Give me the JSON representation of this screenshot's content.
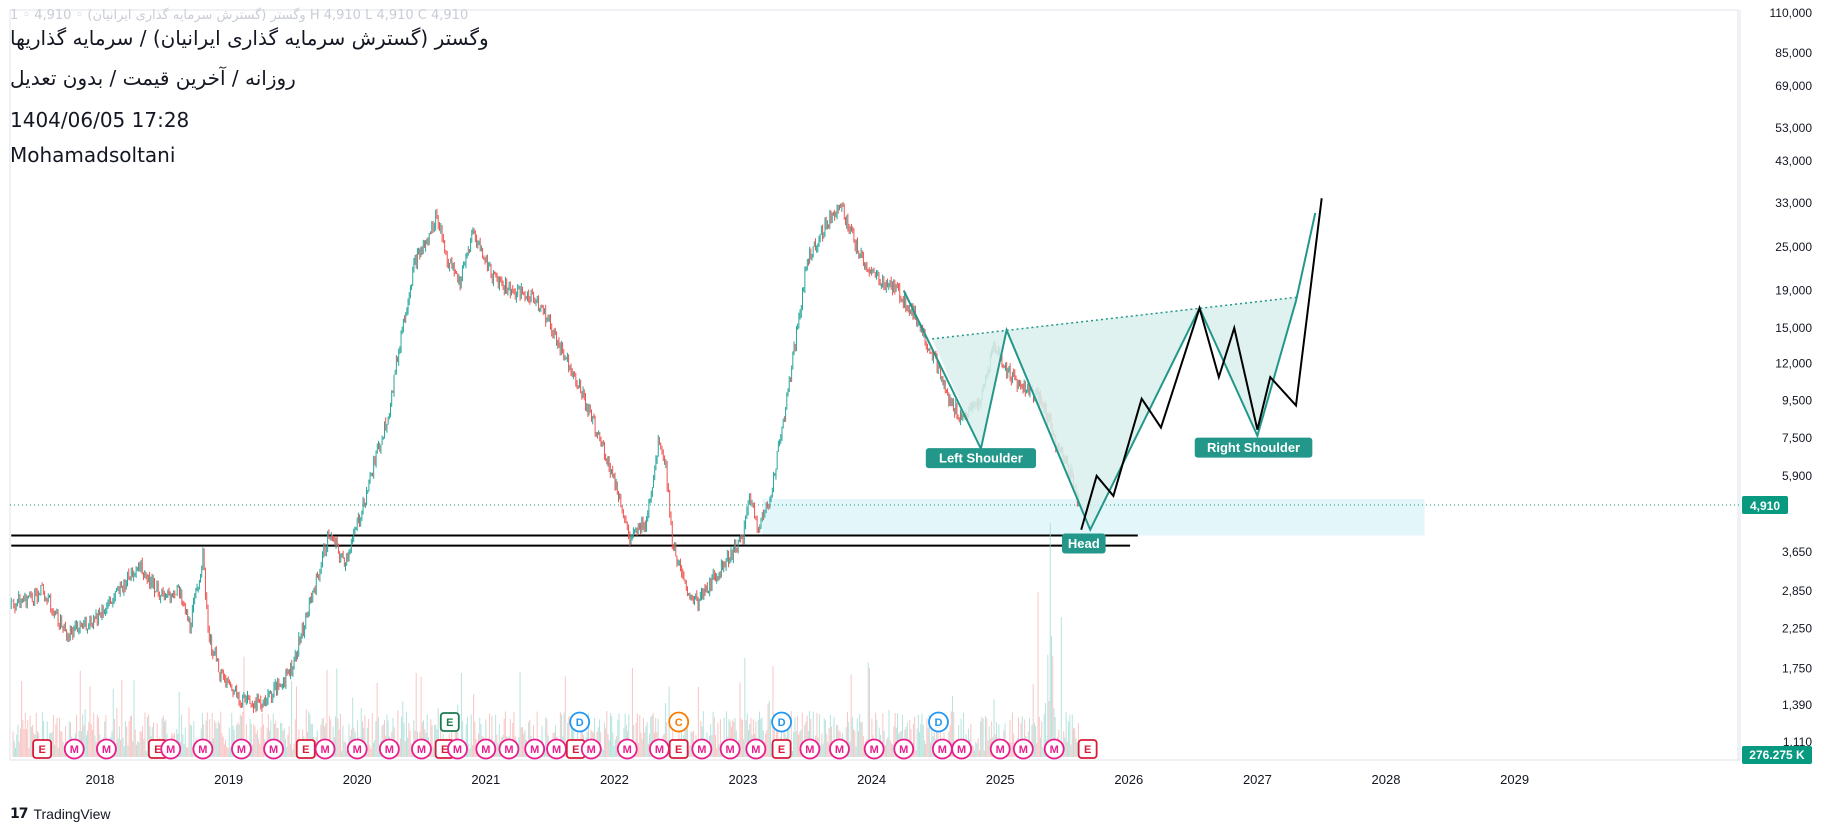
{
  "header": {
    "faded_line": "1 ◦ وگستر (گسترش سرمایه گذاری ایرانیان) ◦ 4,910 H 4,910 L 4,910 C 4,910",
    "title": "وگستر (گسترش سرمایه گذاری ایرانیان) / سرمایه گذاریها",
    "subtitle": "روزانه / آخرین قیمت / بدون تعدیل",
    "date": "1404/06/05 17:28",
    "author": "Mohamadsoltani"
  },
  "branding": {
    "logo_mark": "17",
    "logo_text": "TradingView"
  },
  "colors": {
    "up": "#26a69a",
    "down": "#ef5350",
    "pattern": "#22978a",
    "pattern_fill": "#d9f0ec",
    "zone_fill": "#e0f5fa",
    "projection": "#000000",
    "event_marker": "#e91e8c",
    "price_badge": "#089981"
  },
  "chart_data": {
    "type": "candlestick",
    "price_scale": "log",
    "x_axis": {
      "tick_labels": [
        "2018",
        "2019",
        "2020",
        "2021",
        "2022",
        "2023",
        "2024",
        "2025",
        "2026",
        "2027",
        "2028",
        "2029"
      ]
    },
    "y_axis": {
      "tick_labels": [
        "110,000",
        "85,000",
        "69,000",
        "53,000",
        "43,000",
        "33,000",
        "25,000",
        "19,000",
        "15,000",
        "12,000",
        "9,500",
        "7,500",
        "5,900",
        "4,910",
        "3,650",
        "2,850",
        "2,250",
        "1,750",
        "1,390",
        "1,110"
      ],
      "range": [
        1000,
        115000
      ]
    },
    "last_price": {
      "value": 4910,
      "label": "4,910"
    },
    "volume_label": "276.275 K",
    "price_path": [
      [
        2017.31,
        2600
      ],
      [
        2017.55,
        2850
      ],
      [
        2017.75,
        2150
      ],
      [
        2017.95,
        2400
      ],
      [
        2018.1,
        2700
      ],
      [
        2018.3,
        3400
      ],
      [
        2018.5,
        2700
      ],
      [
        2018.6,
        2900
      ],
      [
        2018.7,
        2300
      ],
      [
        2018.8,
        3500
      ],
      [
        2018.85,
        2100
      ],
      [
        2018.95,
        1650
      ],
      [
        2019.1,
        1450
      ],
      [
        2019.25,
        1400
      ],
      [
        2019.4,
        1580
      ],
      [
        2019.5,
        1800
      ],
      [
        2019.6,
        2400
      ],
      [
        2019.7,
        3200
      ],
      [
        2019.78,
        4100
      ],
      [
        2019.9,
        3400
      ],
      [
        2020.0,
        4300
      ],
      [
        2020.1,
        5800
      ],
      [
        2020.25,
        9000
      ],
      [
        2020.35,
        15000
      ],
      [
        2020.45,
        23000
      ],
      [
        2020.55,
        26000
      ],
      [
        2020.62,
        31000
      ],
      [
        2020.7,
        23000
      ],
      [
        2020.8,
        20000
      ],
      [
        2020.9,
        27500
      ],
      [
        2021.05,
        21000
      ],
      [
        2021.2,
        19000
      ],
      [
        2021.4,
        18000
      ],
      [
        2021.55,
        14000
      ],
      [
        2021.7,
        11000
      ],
      [
        2021.85,
        8000
      ],
      [
        2021.95,
        6500
      ],
      [
        2022.05,
        5000
      ],
      [
        2022.12,
        3900
      ],
      [
        2022.25,
        4500
      ],
      [
        2022.35,
        7500
      ],
      [
        2022.4,
        6300
      ],
      [
        2022.45,
        3900
      ],
      [
        2022.55,
        2900
      ],
      [
        2022.65,
        2650
      ],
      [
        2022.75,
        3000
      ],
      [
        2022.85,
        3400
      ],
      [
        2023.0,
        4000
      ],
      [
        2023.05,
        5200
      ],
      [
        2023.12,
        4300
      ],
      [
        2023.2,
        4900
      ],
      [
        2023.35,
        10000
      ],
      [
        2023.5,
        23000
      ],
      [
        2023.6,
        27000
      ],
      [
        2023.75,
        33000
      ],
      [
        2023.9,
        24000
      ],
      [
        2024.0,
        21000
      ],
      [
        2024.2,
        19000
      ],
      [
        2024.35,
        16000
      ],
      [
        2024.5,
        12000
      ],
      [
        2024.6,
        9500
      ],
      [
        2024.7,
        8500
      ],
      [
        2024.85,
        9500
      ],
      [
        2024.95,
        13500
      ],
      [
        2025.05,
        11500
      ],
      [
        2025.15,
        10500
      ],
      [
        2025.25,
        10000
      ],
      [
        2025.35,
        9000
      ],
      [
        2025.45,
        7000
      ],
      [
        2025.55,
        6000
      ],
      [
        2025.62,
        4910
      ]
    ],
    "volume": {
      "baseline_label": "276.275 K"
    },
    "annotations": {
      "pattern": "Inverse Head and Shoulders",
      "labels": [
        {
          "text": "Left Shoulder",
          "x": 2024.85,
          "y": 6600
        },
        {
          "text": "Head",
          "x": 2025.65,
          "y": 3850
        },
        {
          "text": "Right Shoulder",
          "x": 2026.97,
          "y": 7050
        }
      ],
      "neckline": [
        [
          2024.47,
          14000
        ],
        [
          2027.3,
          18200
        ]
      ],
      "left_shoulder_outline": [
        [
          2024.25,
          19000
        ],
        [
          2024.85,
          7000
        ],
        [
          2025.05,
          14800
        ],
        [
          2025.7,
          4200
        ],
        [
          2026.55,
          17000
        ],
        [
          2027.0,
          7600
        ],
        [
          2027.3,
          17800
        ],
        [
          2027.45,
          31000
        ]
      ],
      "projection_path": [
        [
          2025.63,
          4200
        ],
        [
          2025.75,
          5900
        ],
        [
          2025.88,
          5200
        ],
        [
          2026.1,
          9600
        ],
        [
          2026.25,
          8000
        ],
        [
          2026.55,
          17000
        ],
        [
          2026.7,
          11000
        ],
        [
          2026.82,
          15000
        ],
        [
          2027.0,
          7900
        ],
        [
          2027.1,
          11000
        ],
        [
          2027.3,
          9200
        ],
        [
          2027.5,
          34000
        ]
      ],
      "support_lines": [
        {
          "y": 4050,
          "x1": 2017.31,
          "x2": 2026.07
        },
        {
          "y": 3800,
          "x1": 2017.31,
          "x2": 2026.01
        }
      ],
      "support_zone": {
        "y1": 4050,
        "y2": 5100,
        "x1": 2023.15,
        "x2": 2028.3
      },
      "last_price_line": 4910
    },
    "events": [
      {
        "type": "E",
        "x": 2017.55
      },
      {
        "type": "M",
        "x": 2017.8
      },
      {
        "type": "M",
        "x": 2018.05
      },
      {
        "type": "E",
        "x": 2018.45
      },
      {
        "type": "M",
        "x": 2018.55
      },
      {
        "type": "M",
        "x": 2018.8
      },
      {
        "type": "M",
        "x": 2019.1
      },
      {
        "type": "M",
        "x": 2019.35
      },
      {
        "type": "E",
        "x": 2019.6
      },
      {
        "type": "M",
        "x": 2019.75
      },
      {
        "type": "M",
        "x": 2020.0
      },
      {
        "type": "M",
        "x": 2020.25
      },
      {
        "type": "M",
        "x": 2020.5
      },
      {
        "type": "E",
        "x": 2020.68
      },
      {
        "type": "M",
        "x": 2020.78
      },
      {
        "type": "M",
        "x": 2021.0
      },
      {
        "type": "M",
        "x": 2021.18
      },
      {
        "type": "M",
        "x": 2021.38
      },
      {
        "type": "M",
        "x": 2021.55
      },
      {
        "type": "E",
        "x": 2021.7
      },
      {
        "type": "M",
        "x": 2021.82
      },
      {
        "type": "M",
        "x": 2022.1
      },
      {
        "type": "M",
        "x": 2022.35
      },
      {
        "type": "E",
        "x": 2022.5
      },
      {
        "type": "M",
        "x": 2022.68
      },
      {
        "type": "M",
        "x": 2022.9
      },
      {
        "type": "M",
        "x": 2023.1
      },
      {
        "type": "E",
        "x": 2023.3
      },
      {
        "type": "M",
        "x": 2023.52
      },
      {
        "type": "M",
        "x": 2023.75
      },
      {
        "type": "M",
        "x": 2024.02
      },
      {
        "type": "M",
        "x": 2024.25
      },
      {
        "type": "M",
        "x": 2024.55
      },
      {
        "type": "M",
        "x": 2024.7
      },
      {
        "type": "M",
        "x": 2025.0
      },
      {
        "type": "M",
        "x": 2025.18
      },
      {
        "type": "M",
        "x": 2025.42
      },
      {
        "type": "E",
        "x": 2025.68
      }
    ],
    "upper_events": [
      {
        "type": "E",
        "x": 2020.72
      },
      {
        "type": "D",
        "x": 2021.73
      },
      {
        "type": "C",
        "x": 2022.5
      },
      {
        "type": "D",
        "x": 2023.3
      },
      {
        "type": "D",
        "x": 2024.52
      }
    ]
  }
}
